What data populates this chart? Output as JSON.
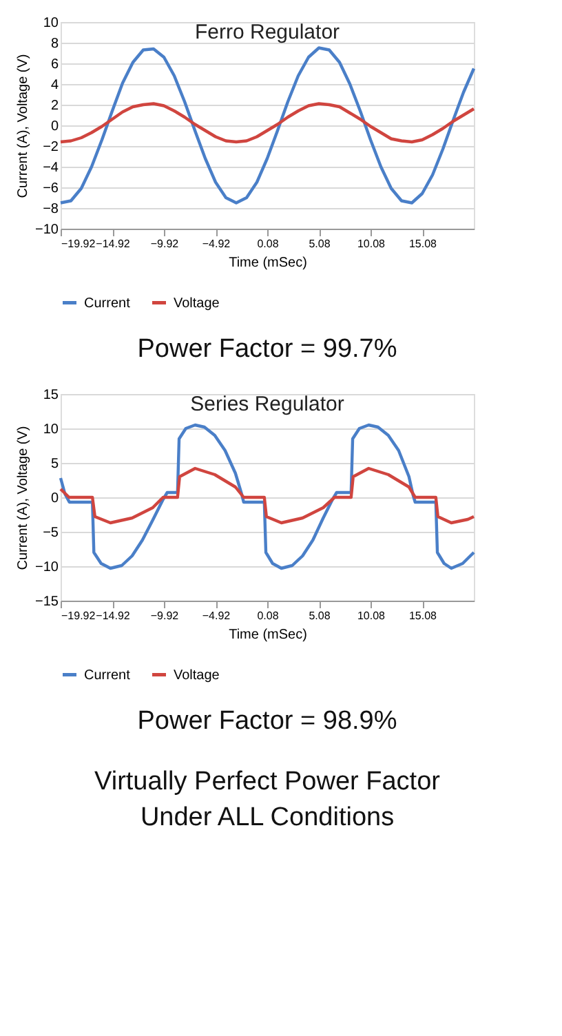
{
  "chart_data": [
    {
      "type": "line",
      "title": "Ferro Regulator",
      "xlabel": "Time (mSec)",
      "ylabel": "Current (A), Voltage (V)",
      "xlim": [
        -19.92,
        20.08
      ],
      "xticks": [
        -19.92,
        -14.92,
        -9.92,
        -4.92,
        0.08,
        5.08,
        10.08,
        15.08
      ],
      "ylim": [
        -10,
        10
      ],
      "yticks": [
        -10,
        -8,
        -6,
        -4,
        -2,
        0,
        2,
        4,
        6,
        8,
        10
      ],
      "grid": "y",
      "legend": "bottom",
      "marker": "none",
      "line_style": "solid",
      "x": [
        -19.92,
        -18.92,
        -17.92,
        -16.92,
        -15.92,
        -14.92,
        -13.92,
        -12.92,
        -11.92,
        -10.92,
        -9.92,
        -8.92,
        -7.92,
        -6.92,
        -5.92,
        -4.92,
        -3.92,
        -2.92,
        -1.92,
        -0.92,
        0.08,
        1.08,
        2.08,
        3.08,
        4.08,
        5.08,
        6.08,
        7.08,
        8.08,
        9.08,
        10.08,
        11.08,
        12.08,
        13.08,
        14.08,
        15.08,
        16.08,
        17.08,
        18.08,
        19.08,
        20.08
      ],
      "series": [
        {
          "name": "Current",
          "color": "#4a7fc8",
          "values": [
            -7.5,
            -7.3,
            -6.1,
            -4.0,
            -1.4,
            1.4,
            4.1,
            6.1,
            7.3,
            7.4,
            6.6,
            4.8,
            2.3,
            -0.5,
            -3.2,
            -5.5,
            -7.0,
            -7.5,
            -7.0,
            -5.5,
            -3.2,
            -0.5,
            2.3,
            4.8,
            6.6,
            7.5,
            7.3,
            6.1,
            4.0,
            1.4,
            -1.4,
            -4.0,
            -6.1,
            -7.3,
            -7.5,
            -6.6,
            -4.8,
            -2.3,
            0.5,
            3.2,
            5.5
          ]
        },
        {
          "name": "Voltage",
          "color": "#d0453f",
          "values": [
            -1.6,
            -1.5,
            -1.2,
            -0.7,
            -0.1,
            0.6,
            1.3,
            1.8,
            2.0,
            2.1,
            1.9,
            1.4,
            0.8,
            0.1,
            -0.5,
            -1.1,
            -1.5,
            -1.6,
            -1.5,
            -1.1,
            -0.5,
            0.1,
            0.8,
            1.4,
            1.9,
            2.1,
            2.0,
            1.8,
            1.2,
            0.6,
            -0.1,
            -0.7,
            -1.3,
            -1.5,
            -1.6,
            -1.4,
            -0.9,
            -0.3,
            0.4,
            1.0,
            1.6
          ]
        }
      ],
      "annotations": [
        "Power Factor = 99.7%"
      ]
    },
    {
      "type": "line",
      "title": "Series Regulator",
      "xlabel": "Time (mSec)",
      "ylabel": "Current (A), Voltage (V)",
      "xlim": [
        -19.92,
        20.08
      ],
      "xticks": [
        -19.92,
        -14.92,
        -9.92,
        -4.92,
        0.08,
        5.08,
        10.08,
        15.08
      ],
      "ylim": [
        -15,
        15
      ],
      "yticks": [
        -15,
        -10,
        -5,
        0,
        5,
        10,
        15
      ],
      "grid": "y",
      "legend": "bottom",
      "marker": "none",
      "line_style": "solid",
      "series": [
        {
          "name": "Current",
          "color": "#4a7fc8",
          "x": [
            -19.92,
            -19.5,
            -19.07,
            -16.84,
            -16.7,
            -16.0,
            -15.1,
            -14.0,
            -13.0,
            -12.0,
            -11.0,
            -10.0,
            -9.6,
            -8.6,
            -8.45,
            -7.8,
            -6.9,
            -6.0,
            -5.0,
            -4.0,
            -3.0,
            -2.4,
            -2.2,
            -0.2,
            -0.05,
            0.6,
            1.45,
            2.5,
            3.5,
            4.5,
            5.5,
            6.4,
            6.8,
            8.2,
            8.35,
            9.0,
            9.9,
            10.8,
            11.8,
            12.8,
            13.8,
            14.2,
            14.4,
            16.4,
            16.55,
            17.2,
            17.9,
            19.0,
            20.08
          ],
          "values": [
            2.8,
            0.5,
            -0.7,
            -0.7,
            -8,
            -9.6,
            -10.3,
            -9.9,
            -8.5,
            -6.2,
            -3.3,
            -0.3,
            0.7,
            0.7,
            8.5,
            10,
            10.5,
            10.2,
            9.0,
            6.8,
            3.5,
            0.5,
            -0.7,
            -0.7,
            -8,
            -9.6,
            -10.3,
            -9.9,
            -8.5,
            -6.2,
            -3,
            -0.3,
            0.7,
            0.7,
            8.5,
            10,
            10.5,
            10.2,
            9.0,
            6.8,
            3,
            0.3,
            -0.7,
            -0.7,
            -8,
            -9.6,
            -10.3,
            -9.6,
            -8
          ]
        },
        {
          "name": "Voltage",
          "color": "#d0453f",
          "x": [
            -19.92,
            -19.1,
            -16.84,
            -16.6,
            -15.1,
            -13,
            -11,
            -10.0,
            -8.6,
            -8.4,
            -6.9,
            -5,
            -3,
            -2.2,
            -0.2,
            0.0,
            1.45,
            3.5,
            5.5,
            6.6,
            8.2,
            8.4,
            9.9,
            11.8,
            13.8,
            14.4,
            16.4,
            16.6,
            17.9,
            19.5,
            20.08
          ],
          "values": [
            1.2,
            0,
            0,
            -2.8,
            -3.7,
            -3,
            -1.5,
            0,
            0,
            3,
            4.2,
            3.3,
            1.5,
            0,
            0,
            -2.8,
            -3.7,
            -3,
            -1.5,
            0,
            0,
            3,
            4.2,
            3.3,
            1.5,
            0,
            0,
            -2.8,
            -3.7,
            -3.2,
            -2.8
          ]
        }
      ],
      "annotations": [
        "Power Factor = 98.9%",
        "Virtually Perfect Power Factor",
        "Under ALL Conditions"
      ]
    }
  ]
}
